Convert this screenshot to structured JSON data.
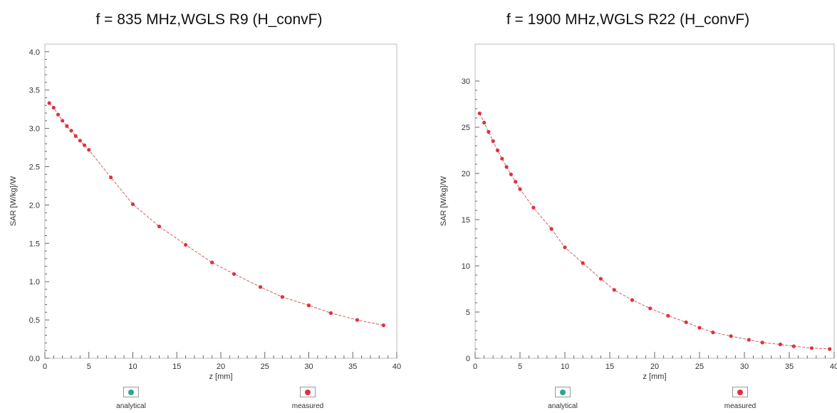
{
  "colors": {
    "analytical": "#2aa88a",
    "measured": "#e03040",
    "curve": "#d26060",
    "frame": "#bbbbbb",
    "tick": "#666666"
  },
  "legend": {
    "analytical": "analytical",
    "measured": "measured"
  },
  "chart_data": [
    {
      "type": "scatter",
      "title": "f = 835 MHz,WGLS R9 (H_convF)",
      "xlabel": "z [mm]",
      "ylabel": "SAR [W/kg]/W",
      "xlim": [
        0,
        40
      ],
      "ylim": [
        0,
        4.1
      ],
      "xticks": [
        0,
        5,
        10,
        15,
        20,
        25,
        30,
        35,
        40
      ],
      "xtick_labels": [
        "0",
        "5",
        "10",
        "15",
        "20",
        "25",
        "30",
        "35",
        "40"
      ],
      "yticks": [
        0,
        0.5,
        1.0,
        1.5,
        2.0,
        2.5,
        3.0,
        3.5,
        4.0
      ],
      "ytick_labels": [
        "0.0",
        "0.5",
        "1.0",
        "1.5",
        "2.0",
        "2.5",
        "3.0",
        "3.5",
        "4.0"
      ],
      "grid": false,
      "legend_position": "bottom",
      "series": [
        {
          "name": "measured",
          "x": [
            0.5,
            1.0,
            1.5,
            2.0,
            2.5,
            3.0,
            3.5,
            4.0,
            4.5,
            5.0,
            7.5,
            10.0,
            13.0,
            16.0,
            19.0,
            21.5,
            24.5,
            27.0,
            30.0,
            32.5,
            35.5,
            38.5
          ],
          "y": [
            3.33,
            3.27,
            3.18,
            3.1,
            3.03,
            2.97,
            2.9,
            2.84,
            2.78,
            2.72,
            2.36,
            2.01,
            1.72,
            1.48,
            1.25,
            1.1,
            0.93,
            0.8,
            0.69,
            0.59,
            0.5,
            0.43
          ]
        }
      ]
    },
    {
      "type": "scatter",
      "title": "f = 1900 MHz,WGLS R22 (H_convF)",
      "xlabel": "z [mm]",
      "ylabel": "SAR [W/kg]/W",
      "xlim": [
        0,
        40
      ],
      "ylim": [
        0,
        34
      ],
      "xticks": [
        0,
        5,
        10,
        15,
        20,
        25,
        30,
        35,
        40
      ],
      "xtick_labels": [
        "0",
        "5",
        "10",
        "15",
        "20",
        "25",
        "30",
        "35",
        "40"
      ],
      "yticks": [
        0,
        5,
        10,
        15,
        20,
        25,
        30
      ],
      "ytick_labels": [
        "0",
        "5",
        "10",
        "15",
        "20",
        "25",
        "30"
      ],
      "grid": false,
      "legend_position": "bottom",
      "series": [
        {
          "name": "measured",
          "x": [
            0.5,
            1.0,
            1.5,
            2.0,
            2.5,
            3.0,
            3.5,
            4.0,
            4.5,
            5.0,
            6.5,
            8.5,
            10.0,
            12.0,
            14.0,
            15.5,
            17.5,
            19.5,
            21.5,
            23.5,
            25.0,
            26.5,
            28.5,
            30.5,
            32.0,
            34.0,
            35.5,
            37.5,
            39.5
          ],
          "y": [
            26.5,
            25.5,
            24.5,
            23.5,
            22.5,
            21.6,
            20.7,
            19.9,
            19.1,
            18.3,
            16.3,
            14.0,
            12.0,
            10.3,
            8.6,
            7.4,
            6.3,
            5.4,
            4.6,
            3.9,
            3.3,
            2.8,
            2.4,
            2.0,
            1.7,
            1.5,
            1.3,
            1.1,
            1.0
          ]
        }
      ]
    }
  ]
}
